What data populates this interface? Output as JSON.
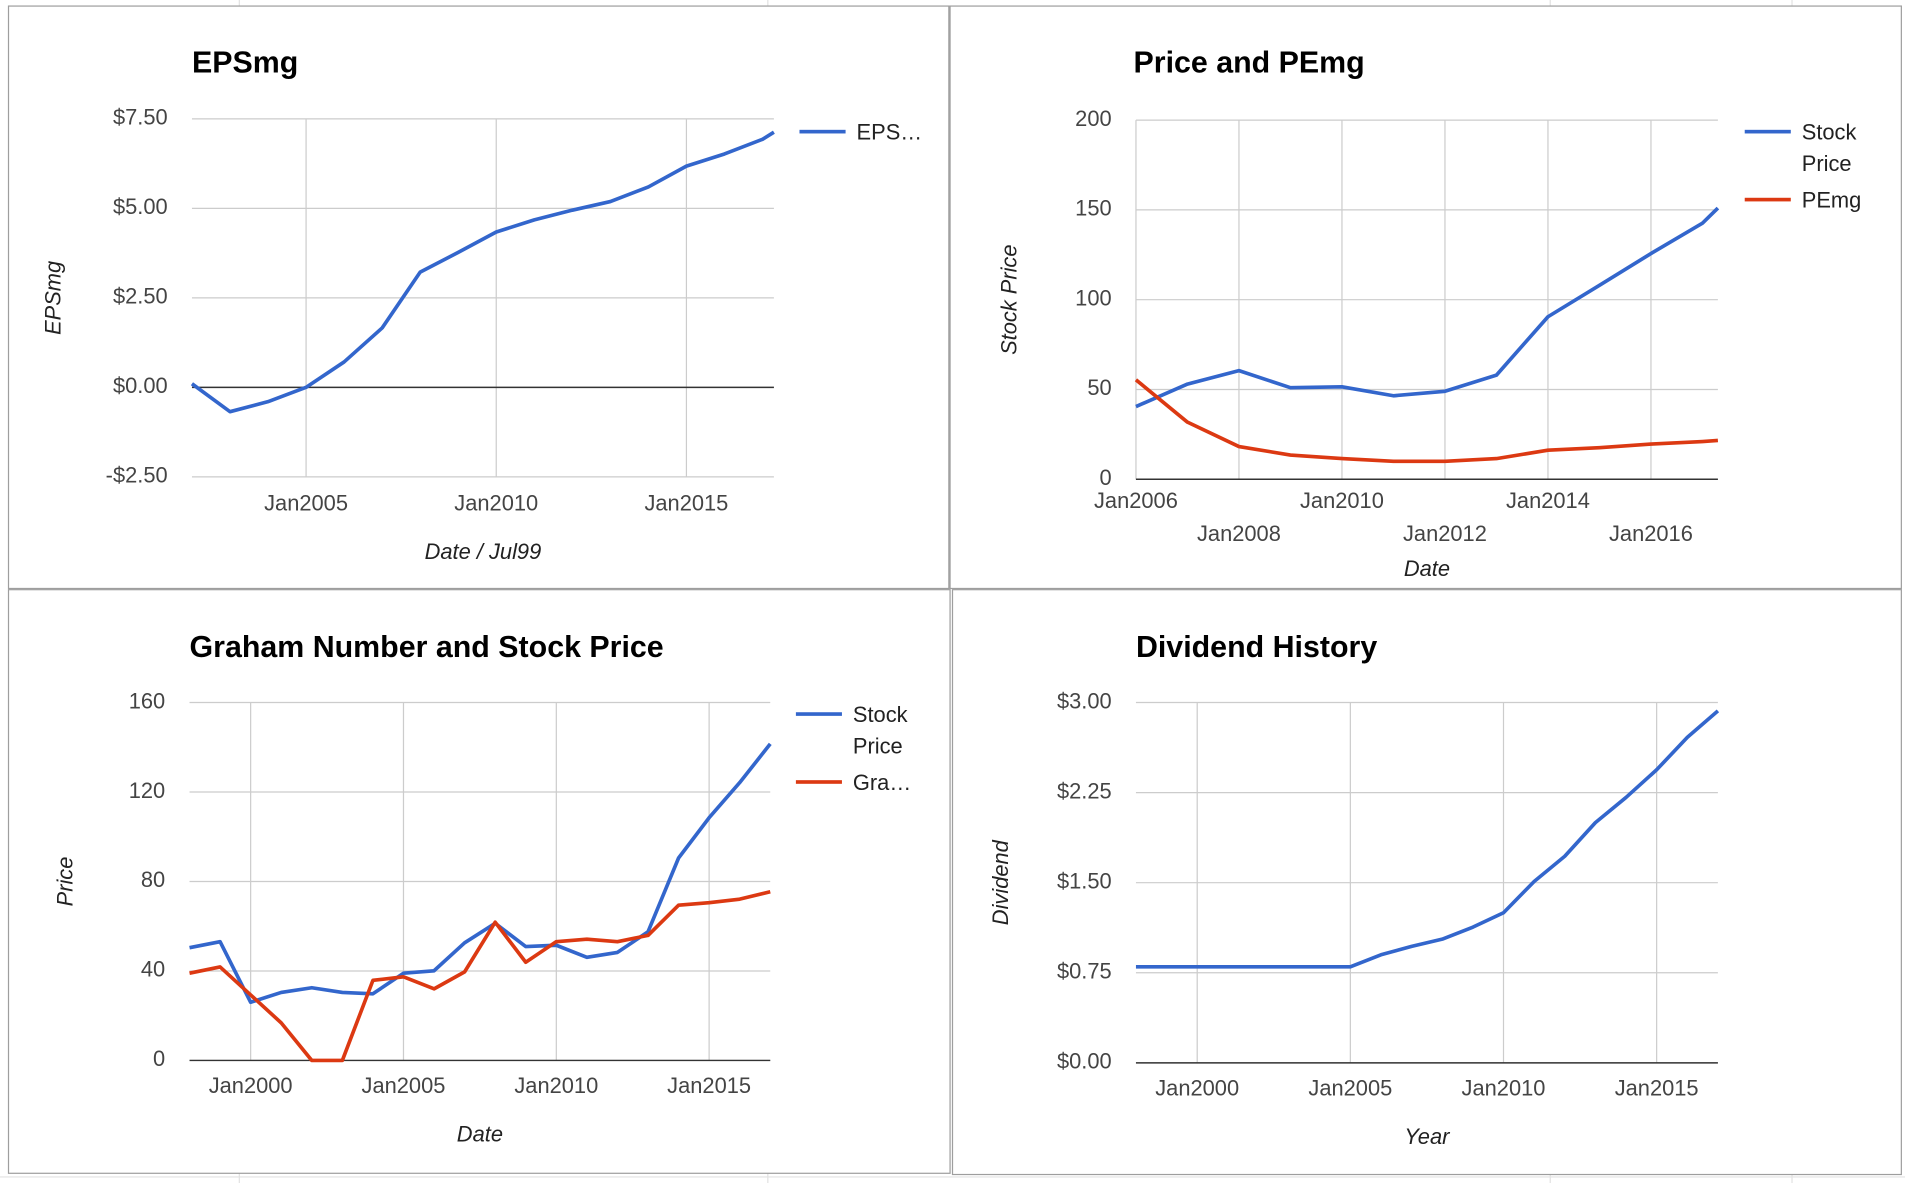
{
  "chart_data": [
    {
      "type": "line",
      "title": "EPSmg",
      "x_label": "Date / Jul99",
      "y_label": "EPSmg",
      "legend": "right",
      "x": [
        2002,
        2003,
        2004,
        2005,
        2006,
        2007,
        2008,
        2009,
        2010,
        2011,
        2012,
        2013,
        2014,
        2015,
        2016,
        2017,
        2017.3
      ],
      "series": [
        {
          "name": "EPS…",
          "color": "#3366cc",
          "values": [
            0.1,
            -0.68,
            -0.4,
            0,
            0.71,
            1.66,
            3.22,
            3.77,
            4.34,
            4.68,
            4.95,
            5.19,
            5.6,
            6.18,
            6.52,
            6.93,
            7.13
          ]
        }
      ],
      "xlim": [
        2002,
        2017.3
      ],
      "xticks": [
        {
          "value": 2005,
          "label": "Jan2005"
        },
        {
          "value": 2010,
          "label": "Jan2010"
        },
        {
          "value": 2015,
          "label": "Jan2015"
        }
      ],
      "ylim": [
        -2.5,
        7.5
      ],
      "yticks": [
        {
          "value": -2.5,
          "label": "-$2.50"
        },
        {
          "value": 0,
          "label": "$0.00"
        },
        {
          "value": 2.5,
          "label": "$2.50"
        },
        {
          "value": 5,
          "label": "$5.00"
        },
        {
          "value": 7.5,
          "label": "$7.50"
        }
      ],
      "grid": true
    },
    {
      "type": "line",
      "title": "Price and PEmg",
      "x_label": "Date",
      "y_label": "Stock Price",
      "legend": "right",
      "x": [
        2006,
        2007,
        2008,
        2009,
        2010,
        2011,
        2012,
        2013,
        2014,
        2015,
        2016,
        2017,
        2017.3
      ],
      "series": [
        {
          "name": "Stock Price",
          "color": "#3366cc",
          "values": [
            40.5,
            53,
            60.5,
            51,
            51.5,
            46.5,
            49,
            58,
            90.5,
            108,
            125.7,
            142.6,
            151
          ]
        },
        {
          "name": "PEmg",
          "color": "#dc3912",
          "values": [
            55.4,
            31.8,
            18.2,
            13.5,
            11.5,
            10,
            10,
            11.5,
            16.2,
            17.6,
            19.6,
            21,
            21.6
          ]
        }
      ],
      "xlim": [
        2006,
        2017.3
      ],
      "xticks": [
        {
          "value": 2006,
          "label": "Jan2006"
        },
        {
          "value": 2008,
          "label": "Jan2008"
        },
        {
          "value": 2010,
          "label": "Jan2010"
        },
        {
          "value": 2012,
          "label": "Jan2012"
        },
        {
          "value": 2014,
          "label": "Jan2014"
        },
        {
          "value": 2016,
          "label": "Jan2016"
        }
      ],
      "ylim": [
        0,
        200
      ],
      "yticks": [
        0,
        50,
        100,
        150,
        200
      ],
      "grid": true
    },
    {
      "type": "line",
      "title": "Graham Number and Stock Price",
      "x_label": "Date",
      "y_label": "Price",
      "legend": "right",
      "x": [
        1998,
        1999,
        2000,
        2001,
        2002,
        2003,
        2004,
        2005,
        2006,
        2007,
        2008,
        2009,
        2010,
        2011,
        2012,
        2013,
        2014,
        2015,
        2016,
        2017
      ],
      "series": [
        {
          "name": "Stock Price",
          "color": "#3366cc",
          "values": [
            50.4,
            53.1,
            26,
            30.4,
            32.5,
            30.4,
            29.8,
            39,
            40.1,
            52.6,
            61.3,
            50.9,
            51.5,
            46.1,
            48.3,
            57.5,
            90.5,
            108.5,
            124.2,
            141.5
          ]
        },
        {
          "name": "Gra…",
          "color": "#dc3912",
          "values": [
            39,
            41.8,
            29.3,
            16.8,
            0,
            0,
            35.8,
            37.4,
            32,
            39.6,
            61.8,
            43.9,
            53.1,
            54.2,
            53.1,
            55.9,
            69.4,
            70.5,
            72.1,
            75.4
          ]
        }
      ],
      "xlim": [
        1998,
        2017
      ],
      "xticks": [
        {
          "value": 2000,
          "label": "Jan2000"
        },
        {
          "value": 2005,
          "label": "Jan2005"
        },
        {
          "value": 2010,
          "label": "Jan2010"
        },
        {
          "value": 2015,
          "label": "Jan2015"
        }
      ],
      "ylim": [
        0,
        160
      ],
      "yticks": [
        0,
        40,
        80,
        120,
        160
      ],
      "grid": true
    },
    {
      "type": "line",
      "title": "Dividend History",
      "x_label": "Year",
      "y_label": "Dividend",
      "legend": "none",
      "x": [
        1998,
        1999,
        2000,
        2001,
        2002,
        2003,
        2004,
        2005,
        2006,
        2007,
        2008,
        2009,
        2010,
        2011,
        2012,
        2013,
        2014,
        2015,
        2016,
        2017
      ],
      "series": [
        {
          "name": "Dividend",
          "color": "#3366cc",
          "values": [
            0.8,
            0.8,
            0.8,
            0.8,
            0.8,
            0.8,
            0.8,
            0.8,
            0.9,
            0.97,
            1.03,
            1.13,
            1.25,
            1.51,
            1.72,
            2.0,
            2.21,
            2.44,
            2.71,
            2.93
          ]
        }
      ],
      "xlim": [
        1998,
        2017
      ],
      "xticks": [
        {
          "value": 2000,
          "label": "Jan2000"
        },
        {
          "value": 2005,
          "label": "Jan2005"
        },
        {
          "value": 2010,
          "label": "Jan2010"
        },
        {
          "value": 2015,
          "label": "Jan2015"
        }
      ],
      "ylim": [
        0,
        3
      ],
      "yticks": [
        {
          "value": 0,
          "label": "$0.00"
        },
        {
          "value": 0.75,
          "label": "$0.75"
        },
        {
          "value": 1.5,
          "label": "$1.50"
        },
        {
          "value": 2.25,
          "label": "$2.25"
        },
        {
          "value": 3,
          "label": "$3.00"
        }
      ],
      "grid": true
    }
  ]
}
